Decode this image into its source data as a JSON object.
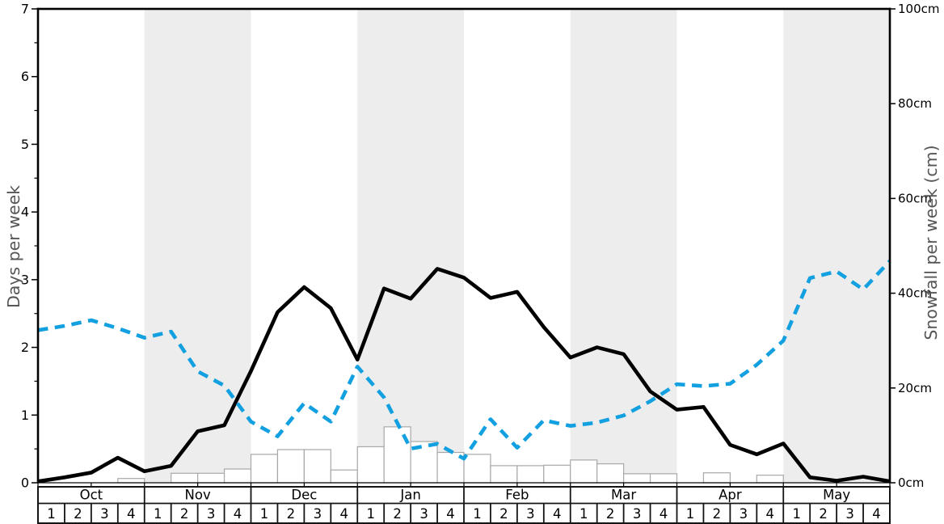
{
  "chart_data": {
    "type": "line+bar",
    "title": "",
    "left_axis": {
      "label": "Days per week",
      "min": 0,
      "max": 7,
      "tick_labels": [
        "0",
        "1",
        "2",
        "3",
        "4",
        "5",
        "6",
        "7"
      ],
      "minor_step": 0.5
    },
    "right_axis": {
      "label": "Snowfall per week (cm)",
      "min": 0,
      "max": 100,
      "tick_labels": [
        "0cm",
        "20cm",
        "40cm",
        "60cm",
        "80cm",
        "100cm"
      ],
      "tick_values": [
        0,
        20,
        40,
        60,
        80,
        100
      ]
    },
    "months": [
      {
        "label": "Oct",
        "weeks": [
          "1",
          "2",
          "3",
          "4"
        ],
        "shaded": false
      },
      {
        "label": "Nov",
        "weeks": [
          "1",
          "2",
          "3",
          "4"
        ],
        "shaded": true
      },
      {
        "label": "Dec",
        "weeks": [
          "1",
          "2",
          "3",
          "4"
        ],
        "shaded": false
      },
      {
        "label": "Jan",
        "weeks": [
          "1",
          "2",
          "3",
          "4"
        ],
        "shaded": true
      },
      {
        "label": "Feb",
        "weeks": [
          "1",
          "2",
          "3",
          "4"
        ],
        "shaded": false
      },
      {
        "label": "Mar",
        "weeks": [
          "1",
          "2",
          "3",
          "4"
        ],
        "shaded": true
      },
      {
        "label": "Apr",
        "weeks": [
          "1",
          "2",
          "3",
          "4"
        ],
        "shaded": false
      },
      {
        "label": "May",
        "weeks": [
          "1",
          "2",
          "3",
          "4"
        ],
        "shaded": true
      }
    ],
    "series": [
      {
        "name": "days-per-week-line",
        "type": "line",
        "style": "solid",
        "axis": "left",
        "color": "#000000",
        "values": [
          0.02,
          0.08,
          0.15,
          0.37,
          0.17,
          0.25,
          0.76,
          0.85,
          1.65,
          2.52,
          2.89,
          2.58,
          1.82,
          2.87,
          2.72,
          3.16,
          3.03,
          2.73,
          2.82,
          2.3,
          1.85,
          2.0,
          1.9,
          1.35,
          1.08,
          1.12,
          0.56,
          0.42,
          0.58,
          0.08,
          0.03,
          0.09,
          0.02
        ]
      },
      {
        "name": "snowfall-per-week-line",
        "type": "line",
        "style": "dashed",
        "axis": "right",
        "color": "#12a0e0",
        "values": [
          32.2,
          33.1,
          34.3,
          32.6,
          30.6,
          31.9,
          23.5,
          20.5,
          12.9,
          9.8,
          16.8,
          12.9,
          24.5,
          18.0,
          7.2,
          8.2,
          5.1,
          13.4,
          7.4,
          13.2,
          12.0,
          12.7,
          14.2,
          17.2,
          20.8,
          20.4,
          20.9,
          24.9,
          30.0,
          43.2,
          44.6,
          40.8,
          46.8
        ]
      },
      {
        "name": "snowfall-per-week-bars",
        "type": "bar",
        "axis": "right",
        "fill": "#ffffff",
        "border": "#a8a8a8",
        "values": [
          0,
          0,
          0,
          0.9,
          0,
          2.0,
          2.0,
          2.9,
          6.0,
          7.0,
          7.0,
          2.7,
          7.6,
          11.8,
          8.7,
          6.4,
          6.0,
          3.6,
          3.6,
          3.7,
          4.8,
          4.0,
          1.9,
          1.9,
          0,
          2.1,
          0,
          1.6,
          0,
          0,
          0,
          0
        ]
      }
    ],
    "band_color": "#ededed",
    "spine_color": "#000000",
    "table_border_color": "#141414"
  }
}
